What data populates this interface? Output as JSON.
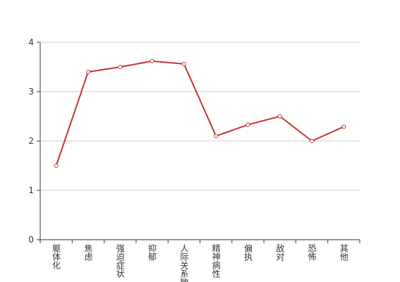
{
  "chart_data": {
    "type": "line",
    "categories": [
      "躯体化",
      "焦虑",
      "强迫症状",
      "抑郁",
      "人际关系敏感",
      "精神病性",
      "偏执",
      "敌对",
      "恐怖",
      "其他"
    ],
    "series": [
      {
        "color": "#c23531",
        "values": [
          1.5,
          3.4,
          3.5,
          3.62,
          3.56,
          2.1,
          2.33,
          2.5,
          2.0,
          2.29
        ]
      }
    ],
    "ylim": [
      0,
      4
    ],
    "yticks": [
      0,
      1,
      2,
      3,
      4
    ],
    "grid": true
  }
}
